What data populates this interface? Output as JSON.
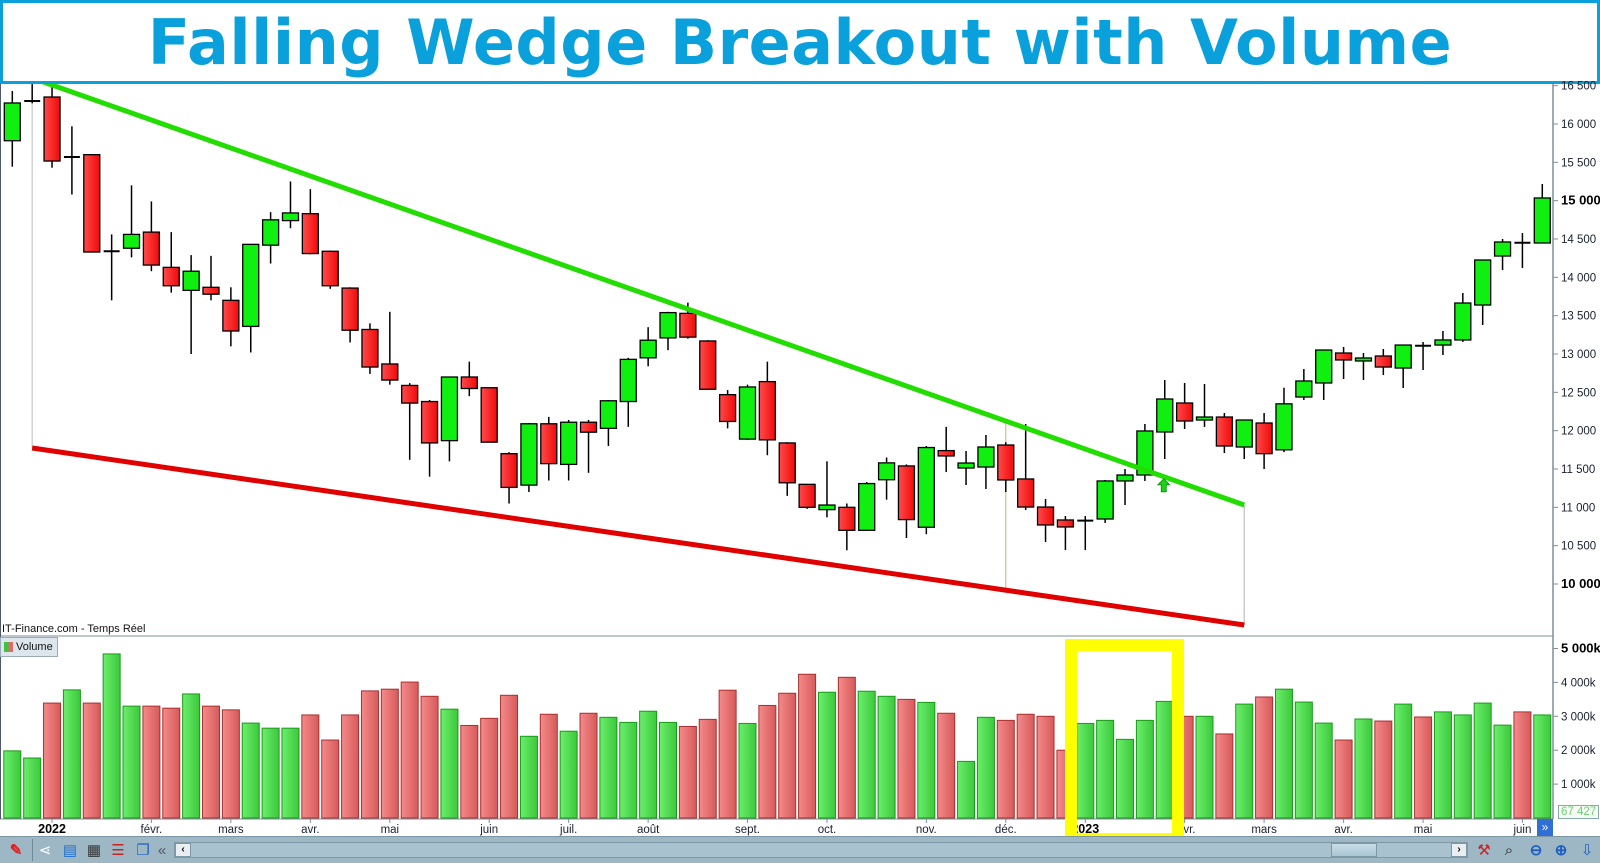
{
  "title": "Falling Wedge Breakout with Volume",
  "source_label": "IT-Finance.com - Temps Réel",
  "volume_legend": "Volume",
  "last_volume_label": "67 427",
  "colors": {
    "title": "#0aa0dc",
    "candle_up": "#10f010",
    "candle_down": "#ff2020",
    "volume_up": "#4fd94f",
    "volume_down": "#ee7878",
    "resistance_line": "#22dd00",
    "support_line": "#e00000",
    "highlight_box": "#ffff00"
  },
  "toolbar": {
    "icons": [
      "edit-drawing-icon",
      "share-icon",
      "comment-icon",
      "report-icon",
      "indicators-icon",
      "windows-icon",
      "collapse-left-icon"
    ],
    "right_icons": [
      "chart-settings-icon",
      "zoom-fit-icon",
      "zoom-out-icon",
      "zoom-in-icon",
      "download-icon"
    ],
    "scroll_left": "‹",
    "scroll_right": "›",
    "collapse": "«",
    "nav_forward": "»"
  },
  "chart_data": [
    {
      "type": "candlestick",
      "title": "",
      "price_axis": {
        "ticks": [
          "16 500",
          "16 000",
          "15 500",
          "15 000",
          "14 500",
          "14 000",
          "13 500",
          "13 000",
          "12 500",
          "12 000",
          "11 500",
          "11 000",
          "10 500",
          "10 000"
        ],
        "tick_values": [
          16500,
          16000,
          15500,
          15000,
          14500,
          14000,
          13500,
          13000,
          12500,
          12000,
          11500,
          11000,
          10500,
          10000
        ],
        "bold_ticks": [
          "15 000",
          "10 000"
        ],
        "range": [
          9400,
          16520
        ]
      },
      "date_axis": {
        "labels": [
          {
            "text": "2022",
            "bar": 2,
            "bold": true
          },
          {
            "text": "févr.",
            "bar": 7
          },
          {
            "text": "mars",
            "bar": 11
          },
          {
            "text": "avr.",
            "bar": 15
          },
          {
            "text": "mai",
            "bar": 19
          },
          {
            "text": "juin",
            "bar": 24
          },
          {
            "text": "juil.",
            "bar": 28
          },
          {
            "text": "août",
            "bar": 32
          },
          {
            "text": "sept.",
            "bar": 37
          },
          {
            "text": "oct.",
            "bar": 41
          },
          {
            "text": "nov.",
            "bar": 46
          },
          {
            "text": "déc.",
            "bar": 50
          },
          {
            "text": "2023",
            "bar": 54,
            "bold": true
          },
          {
            "text": "févr.",
            "bar": 59
          },
          {
            "text": "mars",
            "bar": 63
          },
          {
            "text": "avr.",
            "bar": 67
          },
          {
            "text": "mai",
            "bar": 71
          },
          {
            "text": "juin",
            "bar": 76
          }
        ]
      },
      "ohlc": [
        [
          15782,
          16274,
          16430,
          15443
        ],
        [
          16300,
          16300,
          16520,
          16270
        ],
        [
          16352,
          15517,
          16520,
          15430
        ],
        [
          15560,
          15580,
          15970,
          15080
        ],
        [
          15600,
          14330,
          15600,
          14330
        ],
        [
          14330,
          14350,
          14560,
          13700
        ],
        [
          14380,
          14560,
          15200,
          14260
        ],
        [
          14590,
          14160,
          14990,
          14080
        ],
        [
          14130,
          13890,
          14590,
          13800
        ],
        [
          13830,
          14080,
          14290,
          13000
        ],
        [
          13870,
          13780,
          14280,
          13700
        ],
        [
          13700,
          13300,
          13870,
          13100
        ],
        [
          13360,
          14430,
          14430,
          13020
        ],
        [
          14420,
          14750,
          14850,
          14180
        ],
        [
          14740,
          14840,
          15250,
          14640
        ],
        [
          14830,
          14310,
          15150,
          14300
        ],
        [
          14340,
          13890,
          14350,
          13850
        ],
        [
          13860,
          13310,
          13870,
          13150
        ],
        [
          13320,
          12830,
          13400,
          12740
        ],
        [
          12870,
          12660,
          13550,
          12600
        ],
        [
          12590,
          12360,
          12620,
          11620
        ],
        [
          12380,
          11840,
          12400,
          11400
        ],
        [
          11870,
          12700,
          12700,
          11600
        ],
        [
          12700,
          12550,
          12900,
          12450
        ],
        [
          12560,
          11850,
          12560,
          11850
        ],
        [
          11700,
          11260,
          11720,
          11050
        ],
        [
          11290,
          12090,
          12100,
          11200
        ],
        [
          12090,
          11570,
          12180,
          11350
        ],
        [
          11560,
          12110,
          12140,
          11350
        ],
        [
          12110,
          11980,
          12140,
          11450
        ],
        [
          12030,
          12390,
          12400,
          11800
        ],
        [
          12380,
          12930,
          12950,
          12050
        ],
        [
          12950,
          13180,
          13350,
          12840
        ],
        [
          13210,
          13540,
          13550,
          13050
        ],
        [
          13530,
          13220,
          13670,
          13200
        ],
        [
          13170,
          12540,
          13180,
          12540
        ],
        [
          12470,
          12120,
          12530,
          12030
        ],
        [
          11890,
          12570,
          12600,
          11880
        ],
        [
          12640,
          11880,
          12900,
          11680
        ],
        [
          11840,
          11320,
          11850,
          11150
        ],
        [
          11300,
          11000,
          11300,
          10980
        ],
        [
          10970,
          11030,
          11600,
          10870
        ],
        [
          11000,
          10700,
          11050,
          10440
        ],
        [
          10700,
          11310,
          11330,
          10700
        ],
        [
          11360,
          11580,
          11650,
          11100
        ],
        [
          11540,
          10840,
          11560,
          10600
        ],
        [
          10740,
          11780,
          11800,
          10650
        ],
        [
          11740,
          11670,
          12050,
          11460
        ],
        [
          11513,
          11578,
          11735,
          11291
        ],
        [
          11526,
          11787,
          11944,
          11239
        ],
        [
          11813,
          11357,
          11850,
          11200
        ],
        [
          11370,
          11004,
          12087,
          10965
        ],
        [
          11004,
          10770,
          11109,
          10548
        ],
        [
          10835,
          10744,
          10887,
          10444
        ],
        [
          10822,
          10830,
          10887,
          10444
        ],
        [
          10848,
          11344,
          11357,
          10796
        ],
        [
          11344,
          11422,
          11500,
          11030
        ],
        [
          11422,
          11996,
          12087,
          11344
        ],
        [
          11983,
          12413,
          12661,
          11630
        ],
        [
          12361,
          12126,
          12622,
          12022
        ],
        [
          12139,
          12178,
          12609,
          12048
        ],
        [
          12178,
          11800,
          12230,
          11709
        ],
        [
          11787,
          12139,
          12139,
          11630
        ],
        [
          12100,
          11700,
          12230,
          11500
        ],
        [
          11750,
          12350,
          12560,
          11720
        ],
        [
          12439,
          12648,
          12804,
          12400
        ],
        [
          12622,
          13052,
          13052,
          12400
        ],
        [
          13013,
          12922,
          13091,
          12674
        ],
        [
          12909,
          12948,
          13013,
          12661
        ],
        [
          12974,
          12830,
          13065,
          12726
        ],
        [
          12817,
          13117,
          13117,
          12557
        ],
        [
          13110,
          13104,
          13157,
          12791
        ],
        [
          13117,
          13183,
          13300,
          12987
        ],
        [
          13183,
          13665,
          13796,
          13157
        ],
        [
          13639,
          14226,
          14226,
          13378
        ],
        [
          14278,
          14461,
          14500,
          14096
        ],
        [
          14455,
          14448,
          14578,
          14122
        ],
        [
          14448,
          15035,
          15217,
          14448
        ]
      ],
      "trendlines": [
        {
          "role": "resistance",
          "points": [
            {
              "bar": 1,
              "price": 16600
            },
            {
              "bar": 62,
              "price": 11030
            }
          ]
        },
        {
          "role": "support",
          "points": [
            {
              "bar": 1,
              "price": 11774
            },
            {
              "bar": 62,
              "price": 9465
            }
          ]
        }
      ],
      "breakout_marker": {
        "bar": 58,
        "price": 11450,
        "icon": "up-arrow-icon"
      }
    },
    {
      "type": "bar",
      "title": "Volume",
      "unit": "k",
      "volume_axis": {
        "ticks": [
          "5 000k",
          "4 000k",
          "3 000k",
          "2 000k",
          "1 000k"
        ],
        "tick_values": [
          5000,
          4000,
          3000,
          2000,
          1000
        ],
        "bold_ticks": [
          "5 000k"
        ]
      },
      "values_k": [
        1980,
        1770,
        3390,
        3780,
        3390,
        4840,
        3300,
        3300,
        3240,
        3660,
        3300,
        3190,
        2800,
        2650,
        2650,
        3040,
        2300,
        3040,
        3750,
        3800,
        4010,
        3590,
        3210,
        2730,
        2940,
        3620,
        2410,
        3060,
        2560,
        3090,
        2970,
        2820,
        3150,
        2820,
        2700,
        2910,
        3770,
        2790,
        3320,
        3680,
        4240,
        3710,
        4150,
        3740,
        3590,
        3500,
        3410,
        3090,
        1670,
        2970,
        2880,
        3060,
        3000,
        2000,
        2790,
        2880,
        2320,
        2880,
        3440,
        3000,
        3000,
        2480,
        3360,
        3570,
        3800,
        3420,
        2800,
        2300,
        2920,
        2860,
        3360,
        2980,
        3130,
        3040,
        3390,
        2740,
        3130,
        3040
      ],
      "highlighted_bars": [
        54,
        58
      ]
    }
  ]
}
